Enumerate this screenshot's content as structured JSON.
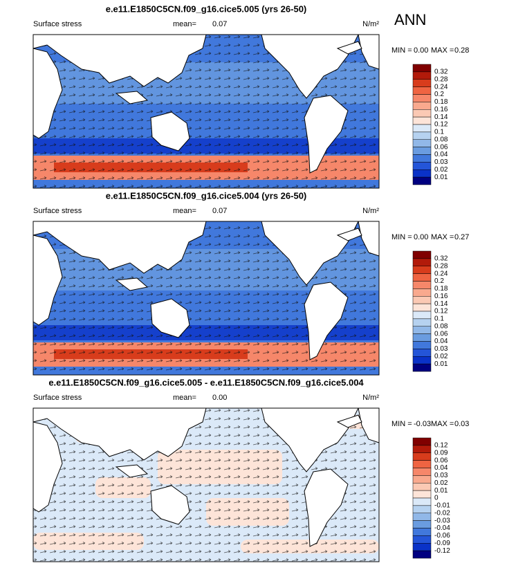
{
  "season": "ANN",
  "panels": [
    {
      "title": "e.e11.E1850C5CN.f09_g16.cice5.005 (yrs 26-50)",
      "variable": "Surface stress",
      "mean_label": "mean=",
      "mean": 0.07,
      "units": "N/m²",
      "min_label": "MIN =",
      "min": {
        "value": 0,
        "label": "0.00"
      },
      "max_label": "MAX =",
      "max": 0.28,
      "levels": [
        0.32,
        0.28,
        0.24,
        0.2,
        0.18,
        0.16,
        0.14,
        0.12,
        0.1,
        0.08,
        0.06,
        0.04,
        0.03,
        0.02,
        0.01
      ],
      "colors": [
        "#800000",
        "#b21a0a",
        "#d83c1c",
        "#ef6442",
        "#f6876a",
        "#f9a98e",
        "#fbc9b4",
        "#fde4d8",
        "#dbe9f8",
        "#b6d2f0",
        "#91b8e8",
        "#6a9ce0",
        "#4178dc",
        "#2455d8",
        "#0a32c8",
        "#000080"
      ]
    },
    {
      "title": "e.e11.E1850C5CN.f09_g16.cice5.004 (yrs 26-50)",
      "variable": "Surface stress",
      "mean_label": "mean=",
      "mean": 0.07,
      "units": "N/m²",
      "min_label": "MIN =",
      "min": {
        "value": 0,
        "label": "0.00"
      },
      "max_label": "MAX =",
      "max": 0.27,
      "levels": [
        0.32,
        0.28,
        0.24,
        0.2,
        0.18,
        0.16,
        0.14,
        0.12,
        0.1,
        0.08,
        0.06,
        0.04,
        0.03,
        0.02,
        0.01
      ],
      "colors": [
        "#800000",
        "#b21a0a",
        "#d83c1c",
        "#ef6442",
        "#f6876a",
        "#f9a98e",
        "#fbc9b4",
        "#fde4d8",
        "#dbe9f8",
        "#b6d2f0",
        "#91b8e8",
        "#6a9ce0",
        "#4178dc",
        "#2455d8",
        "#0a32c8",
        "#000080"
      ]
    },
    {
      "title": "e.e11.E1850C5CN.f09_g16.cice5.005 - e.e11.E1850C5CN.f09_g16.cice5.004",
      "variable": "Surface stress",
      "mean_label": "mean=",
      "mean": {
        "value": 0,
        "label": "0.00"
      },
      "units": "N/m²",
      "min_label": "MIN =",
      "min": -0.03,
      "max_label": "MAX =",
      "max": 0.03,
      "levels": [
        0.12,
        0.09,
        0.06,
        0.04,
        0.03,
        0.02,
        0.01,
        0,
        -0.01,
        -0.02,
        -0.03,
        -0.04,
        -0.06,
        -0.09,
        -0.12
      ],
      "colors": [
        "#800000",
        "#b21a0a",
        "#d83c1c",
        "#ef6442",
        "#f6876a",
        "#f9a98e",
        "#fbc9b4",
        "#fde4d8",
        "#dbe9f8",
        "#b6d2f0",
        "#91b8e8",
        "#6a9ce0",
        "#4178dc",
        "#2455d8",
        "#0a32c8",
        "#000080"
      ]
    }
  ]
}
